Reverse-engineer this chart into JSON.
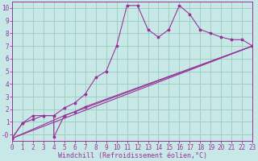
{
  "background_color": "#c8e8e8",
  "grid_color": "#99ccbb",
  "line_color": "#993399",
  "xlabel": "Windchill (Refroidissement éolien,°C)",
  "xlim": [
    0,
    23
  ],
  "ylim": [
    -0.5,
    10.5
  ],
  "ytick_vals": [
    0,
    1,
    2,
    3,
    4,
    5,
    6,
    7,
    8,
    9,
    10
  ],
  "ytick_labels": [
    "-0",
    "1",
    "2",
    "3",
    "4",
    "5",
    "6",
    "7",
    "8",
    "9",
    "10"
  ],
  "xtick_vals": [
    0,
    1,
    2,
    3,
    4,
    5,
    6,
    7,
    8,
    9,
    10,
    11,
    12,
    13,
    14,
    15,
    16,
    17,
    18,
    19,
    20,
    21,
    22,
    23
  ],
  "series1_x": [
    0,
    1,
    2,
    3,
    4,
    5,
    6,
    7,
    8,
    9,
    10,
    11,
    12,
    13,
    14,
    15,
    16,
    17,
    18,
    19,
    20,
    21,
    22,
    23
  ],
  "series1_y": [
    -0.3,
    0.9,
    1.2,
    1.5,
    1.5,
    2.1,
    2.5,
    3.2,
    4.5,
    5.0,
    7.0,
    10.2,
    10.2,
    8.3,
    7.7,
    8.3,
    10.2,
    9.5,
    8.3,
    8.0,
    7.7,
    7.5,
    7.5,
    7.0
  ],
  "series2_x": [
    0,
    1,
    2,
    3,
    4,
    4,
    5,
    6,
    7,
    23
  ],
  "series2_y": [
    -0.3,
    0.9,
    1.5,
    1.5,
    1.5,
    -0.2,
    1.5,
    1.8,
    2.2,
    7.0
  ],
  "series3_x": [
    0,
    5,
    23
  ],
  "series3_y": [
    -0.3,
    1.5,
    7.0
  ],
  "series4_x": [
    0,
    23
  ],
  "series4_y": [
    -0.3,
    7.0
  ],
  "title_color": "#993399",
  "tick_color": "#993399",
  "tick_fontsize": 5.5,
  "xlabel_fontsize": 6.0
}
